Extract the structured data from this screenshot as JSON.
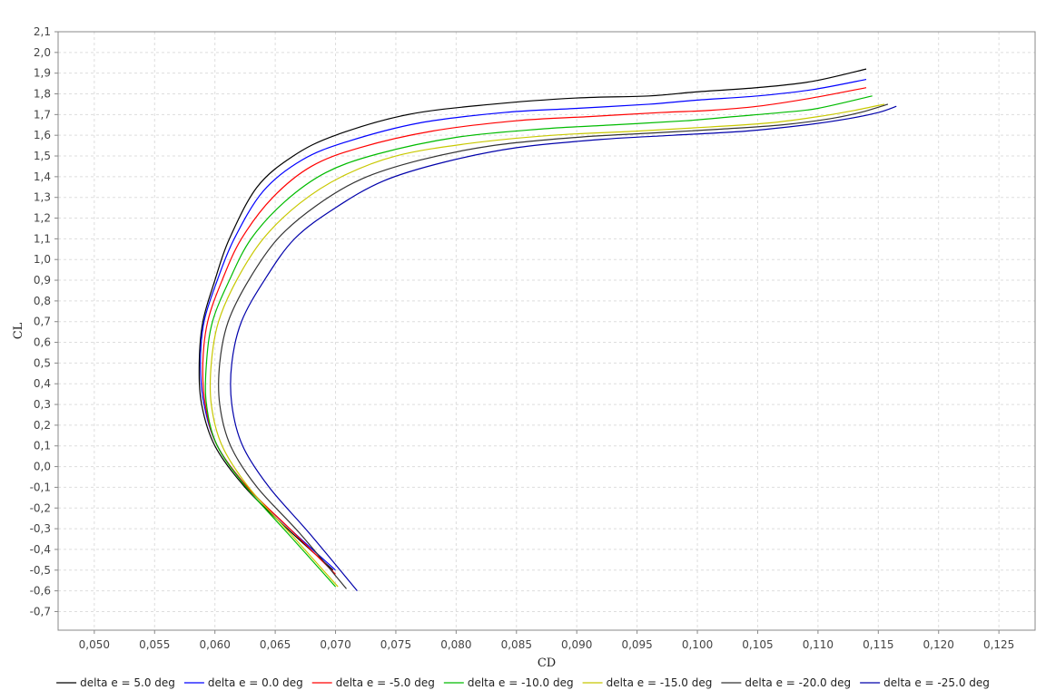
{
  "chart_data": {
    "type": "line",
    "title": "",
    "xlabel": "CD",
    "ylabel": "CL",
    "xlim": [
      0.047,
      0.128
    ],
    "ylim": [
      -0.79,
      2.1
    ],
    "x_ticks": [
      0.05,
      0.055,
      0.06,
      0.065,
      0.07,
      0.075,
      0.08,
      0.085,
      0.09,
      0.095,
      0.1,
      0.105,
      0.11,
      0.115,
      0.12,
      0.125
    ],
    "x_tick_labels": [
      "0,050",
      "0,055",
      "0,060",
      "0,065",
      "0,070",
      "0,075",
      "0,080",
      "0,085",
      "0,090",
      "0,095",
      "0,100",
      "0,105",
      "0,110",
      "0,115",
      "0,120",
      "0,125"
    ],
    "y_ticks": [
      2.1,
      2.0,
      1.9,
      1.8,
      1.7,
      1.6,
      1.5,
      1.4,
      1.3,
      1.2,
      1.1,
      1.0,
      0.9,
      0.8,
      0.7,
      0.6,
      0.5,
      0.4,
      0.3,
      0.2,
      0.1,
      0.0,
      -0.1,
      -0.2,
      -0.3,
      -0.4,
      -0.5,
      -0.6,
      -0.7
    ],
    "y_tick_labels": [
      "2,1",
      "2,0",
      "1,9",
      "1,8",
      "1,7",
      "1,6",
      "1,5",
      "1,4",
      "1,3",
      "1,2",
      "1,1",
      "1,0",
      "0,9",
      "0,8",
      "0,7",
      "0,6",
      "0,5",
      "0,4",
      "0,3",
      "0,2",
      "0,1",
      "0,0",
      "-0,1",
      "-0,2",
      "-0,3",
      "-0,4",
      "-0,5",
      "-0,6",
      "-0,7"
    ],
    "grid": true,
    "legend_position": "bottom",
    "series": [
      {
        "name": "delta e = 5.0 deg",
        "color": "#000000",
        "points": [
          [
            0.0698,
            -0.5
          ],
          [
            0.066,
            -0.3
          ],
          [
            0.0625,
            -0.1
          ],
          [
            0.06,
            0.1
          ],
          [
            0.0589,
            0.3
          ],
          [
            0.0587,
            0.5
          ],
          [
            0.059,
            0.7
          ],
          [
            0.06,
            0.9
          ],
          [
            0.0612,
            1.1
          ],
          [
            0.0635,
            1.35
          ],
          [
            0.0665,
            1.5
          ],
          [
            0.07,
            1.6
          ],
          [
            0.076,
            1.7
          ],
          [
            0.083,
            1.75
          ],
          [
            0.09,
            1.78
          ],
          [
            0.096,
            1.79
          ],
          [
            0.1,
            1.81
          ],
          [
            0.105,
            1.83
          ],
          [
            0.1095,
            1.86
          ],
          [
            0.114,
            1.92
          ]
        ]
      },
      {
        "name": "delta e = 0.0 deg",
        "color": "#0000ff",
        "points": [
          [
            0.07,
            -0.5
          ],
          [
            0.0662,
            -0.3
          ],
          [
            0.0627,
            -0.1
          ],
          [
            0.0602,
            0.1
          ],
          [
            0.0591,
            0.3
          ],
          [
            0.0588,
            0.5
          ],
          [
            0.0591,
            0.7
          ],
          [
            0.0602,
            0.9
          ],
          [
            0.0616,
            1.1
          ],
          [
            0.064,
            1.33
          ],
          [
            0.0672,
            1.48
          ],
          [
            0.071,
            1.57
          ],
          [
            0.077,
            1.66
          ],
          [
            0.084,
            1.71
          ],
          [
            0.09,
            1.73
          ],
          [
            0.096,
            1.75
          ],
          [
            0.1,
            1.77
          ],
          [
            0.105,
            1.79
          ],
          [
            0.1095,
            1.82
          ],
          [
            0.114,
            1.87
          ]
        ]
      },
      {
        "name": "delta e = -5.0 deg",
        "color": "#ff0000",
        "points": [
          [
            0.07,
            -0.52
          ],
          [
            0.0662,
            -0.3
          ],
          [
            0.0627,
            -0.1
          ],
          [
            0.0602,
            0.1
          ],
          [
            0.0592,
            0.3
          ],
          [
            0.059,
            0.5
          ],
          [
            0.0594,
            0.7
          ],
          [
            0.0606,
            0.9
          ],
          [
            0.0622,
            1.1
          ],
          [
            0.0648,
            1.3
          ],
          [
            0.068,
            1.45
          ],
          [
            0.072,
            1.54
          ],
          [
            0.078,
            1.62
          ],
          [
            0.085,
            1.67
          ],
          [
            0.091,
            1.69
          ],
          [
            0.097,
            1.71
          ],
          [
            0.101,
            1.72
          ],
          [
            0.105,
            1.74
          ],
          [
            0.1095,
            1.78
          ],
          [
            0.114,
            1.83
          ]
        ]
      },
      {
        "name": "delta e = -10.0 deg",
        "color": "#00bb00",
        "points": [
          [
            0.07,
            -0.58
          ],
          [
            0.066,
            -0.32
          ],
          [
            0.0626,
            -0.1
          ],
          [
            0.0602,
            0.1
          ],
          [
            0.0593,
            0.3
          ],
          [
            0.0593,
            0.5
          ],
          [
            0.0598,
            0.7
          ],
          [
            0.0612,
            0.9
          ],
          [
            0.063,
            1.1
          ],
          [
            0.0658,
            1.28
          ],
          [
            0.0692,
            1.42
          ],
          [
            0.0735,
            1.51
          ],
          [
            0.08,
            1.59
          ],
          [
            0.087,
            1.63
          ],
          [
            0.093,
            1.65
          ],
          [
            0.099,
            1.67
          ],
          [
            0.103,
            1.69
          ],
          [
            0.107,
            1.71
          ],
          [
            0.11,
            1.73
          ],
          [
            0.1145,
            1.79
          ]
        ]
      },
      {
        "name": "delta e = -15.0 deg",
        "color": "#c8c800",
        "points": [
          [
            0.0702,
            -0.58
          ],
          [
            0.0662,
            -0.32
          ],
          [
            0.0628,
            -0.1
          ],
          [
            0.0606,
            0.1
          ],
          [
            0.0597,
            0.3
          ],
          [
            0.0597,
            0.5
          ],
          [
            0.0603,
            0.7
          ],
          [
            0.0618,
            0.9
          ],
          [
            0.064,
            1.1
          ],
          [
            0.067,
            1.27
          ],
          [
            0.0705,
            1.4
          ],
          [
            0.075,
            1.5
          ],
          [
            0.081,
            1.56
          ],
          [
            0.088,
            1.6
          ],
          [
            0.095,
            1.62
          ],
          [
            0.101,
            1.64
          ],
          [
            0.106,
            1.66
          ],
          [
            0.11,
            1.69
          ],
          [
            0.113,
            1.72
          ],
          [
            0.1155,
            1.75
          ]
        ]
      },
      {
        "name": "delta e = -20.0 deg",
        "color": "#333333",
        "points": [
          [
            0.0709,
            -0.59
          ],
          [
            0.067,
            -0.32
          ],
          [
            0.0635,
            -0.1
          ],
          [
            0.0613,
            0.1
          ],
          [
            0.0604,
            0.3
          ],
          [
            0.0604,
            0.5
          ],
          [
            0.0611,
            0.7
          ],
          [
            0.0628,
            0.9
          ],
          [
            0.0652,
            1.1
          ],
          [
            0.0684,
            1.26
          ],
          [
            0.0722,
            1.39
          ],
          [
            0.077,
            1.48
          ],
          [
            0.083,
            1.55
          ],
          [
            0.09,
            1.59
          ],
          [
            0.096,
            1.61
          ],
          [
            0.102,
            1.63
          ],
          [
            0.107,
            1.65
          ],
          [
            0.111,
            1.68
          ],
          [
            0.1135,
            1.71
          ],
          [
            0.1158,
            1.75
          ]
        ]
      },
      {
        "name": "delta e = -25.0 deg",
        "color": "#0000aa",
        "points": [
          [
            0.0718,
            -0.6
          ],
          [
            0.0678,
            -0.32
          ],
          [
            0.0645,
            -0.1
          ],
          [
            0.0623,
            0.1
          ],
          [
            0.0614,
            0.3
          ],
          [
            0.0614,
            0.5
          ],
          [
            0.0622,
            0.7
          ],
          [
            0.0641,
            0.9
          ],
          [
            0.0666,
            1.1
          ],
          [
            0.07,
            1.25
          ],
          [
            0.074,
            1.38
          ],
          [
            0.079,
            1.47
          ],
          [
            0.085,
            1.54
          ],
          [
            0.092,
            1.58
          ],
          [
            0.098,
            1.6
          ],
          [
            0.104,
            1.62
          ],
          [
            0.109,
            1.65
          ],
          [
            0.1125,
            1.68
          ],
          [
            0.115,
            1.71
          ],
          [
            0.1165,
            1.74
          ]
        ]
      }
    ]
  }
}
